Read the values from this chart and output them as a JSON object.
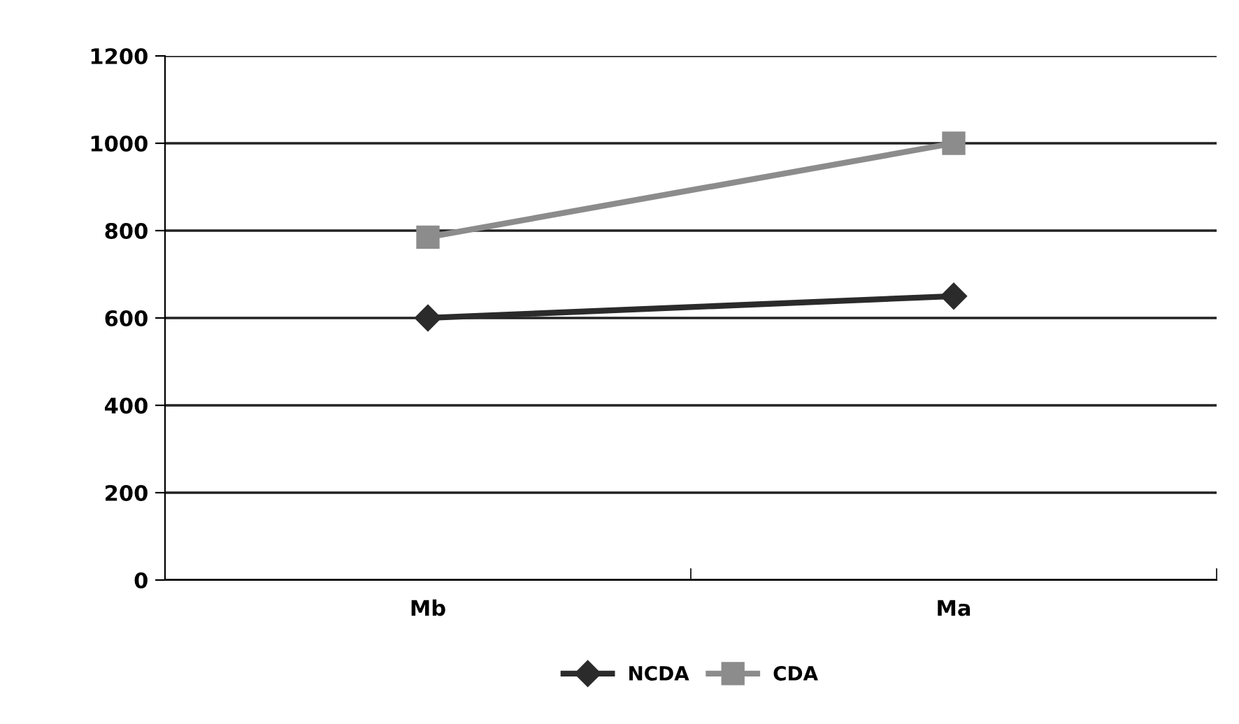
{
  "chart_data": {
    "type": "line",
    "categories": [
      "Mb",
      "Ma"
    ],
    "series": [
      {
        "name": "NCDA",
        "color": "#2b2b2b",
        "values": [
          600,
          650
        ],
        "marker": "diamond"
      },
      {
        "name": "CDA",
        "color": "#8c8c8c",
        "values": [
          785,
          1000
        ],
        "marker": "square"
      }
    ],
    "ylim": [
      0,
      1200
    ],
    "yticks": [
      0,
      200,
      400,
      600,
      800,
      1000,
      1200
    ],
    "grid": "y",
    "legend": "bottom",
    "line_style": "solid"
  }
}
